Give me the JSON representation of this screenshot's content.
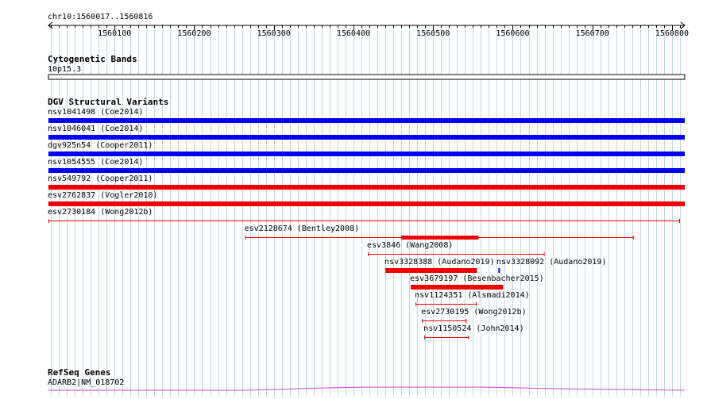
{
  "ruler": {
    "locus": "chr10:1560017..1560816",
    "start": 1560017,
    "end": 1560816,
    "ticks": [
      {
        "pos": 1560100,
        "label": "1560100"
      },
      {
        "pos": 1560200,
        "label": "1560200"
      },
      {
        "pos": 1560300,
        "label": "1560300"
      },
      {
        "pos": 1560400,
        "label": "1560400"
      },
      {
        "pos": 1560500,
        "label": "1560500"
      },
      {
        "pos": 1560600,
        "label": "1560600"
      },
      {
        "pos": 1560700,
        "label": "1560700"
      },
      {
        "pos": 1560800,
        "label": "1560800"
      }
    ],
    "minor_step": 10
  },
  "cytoband": {
    "title": "Cytogenetic Bands",
    "band": "10p15.3"
  },
  "dgv": {
    "title": "DGV Structural Variants",
    "features": [
      {
        "label": "nsv1041498 (Coe2014)",
        "start": 1560017,
        "end": 1560816,
        "color": "#0000ee",
        "style": "thick"
      },
      {
        "label": "nsv1046041 (Coe2014)",
        "start": 1560017,
        "end": 1560816,
        "color": "#0000ee",
        "style": "thick"
      },
      {
        "label": "dgv925n54 (Cooper2011)",
        "start": 1560017,
        "end": 1560816,
        "color": "#0000ee",
        "style": "thick"
      },
      {
        "label": "nsv1054555 (Coe2014)",
        "start": 1560017,
        "end": 1560816,
        "color": "#0000ee",
        "style": "thick"
      },
      {
        "label": "nsv549792 (Cooper2011)",
        "start": 1560017,
        "end": 1560816,
        "color": "#ee0000",
        "style": "thick"
      },
      {
        "label": "esv2762837 (Vogler2010)",
        "start": 1560017,
        "end": 1560816,
        "color": "#ee0000",
        "style": "thick"
      },
      {
        "label": "esv2730184 (Wong2012b)",
        "start": 1560017,
        "end": 1560810,
        "color": "#ee0000",
        "style": "thin"
      },
      {
        "label": "esv2128674 (Bentley2008)",
        "start": 1560264,
        "end": 1560752,
        "color": "#ee0000",
        "style": "mixed",
        "thick_start": 1560460,
        "thick_end": 1560557
      },
      {
        "label": "esv3846 (Wang2008)",
        "start": 1560418,
        "end": 1560640,
        "color": "#ee0000",
        "style": "thin"
      },
      {
        "label": "nsv3328388 (Audano2019)",
        "start": 1560440,
        "end": 1560555,
        "color": "#ee0000",
        "style": "thick"
      },
      {
        "label": "nsv3328092 (Audano2019)",
        "start": 1560582,
        "end": 1560584,
        "color": "#0000ee",
        "style": "thick"
      },
      {
        "label": "esv3679197 (Besenbacher2015)",
        "start": 1560472,
        "end": 1560588,
        "color": "#ee0000",
        "style": "thick"
      },
      {
        "label": "nsv1124351 (Alsmadi2014)",
        "start": 1560478,
        "end": 1560555,
        "color": "#ee0000",
        "style": "thin"
      },
      {
        "label": "esv2730195 (Wong2012b)",
        "start": 1560486,
        "end": 1560542,
        "color": "#ee0000",
        "style": "thin"
      },
      {
        "label": "nsv1150524 (John2014)",
        "start": 1560489,
        "end": 1560545,
        "color": "#ee0000",
        "style": "thin"
      }
    ]
  },
  "refseq": {
    "title": "RefSeq Genes",
    "gene_label": "ADARB2|NM_018702",
    "color": "#cc44cc"
  }
}
